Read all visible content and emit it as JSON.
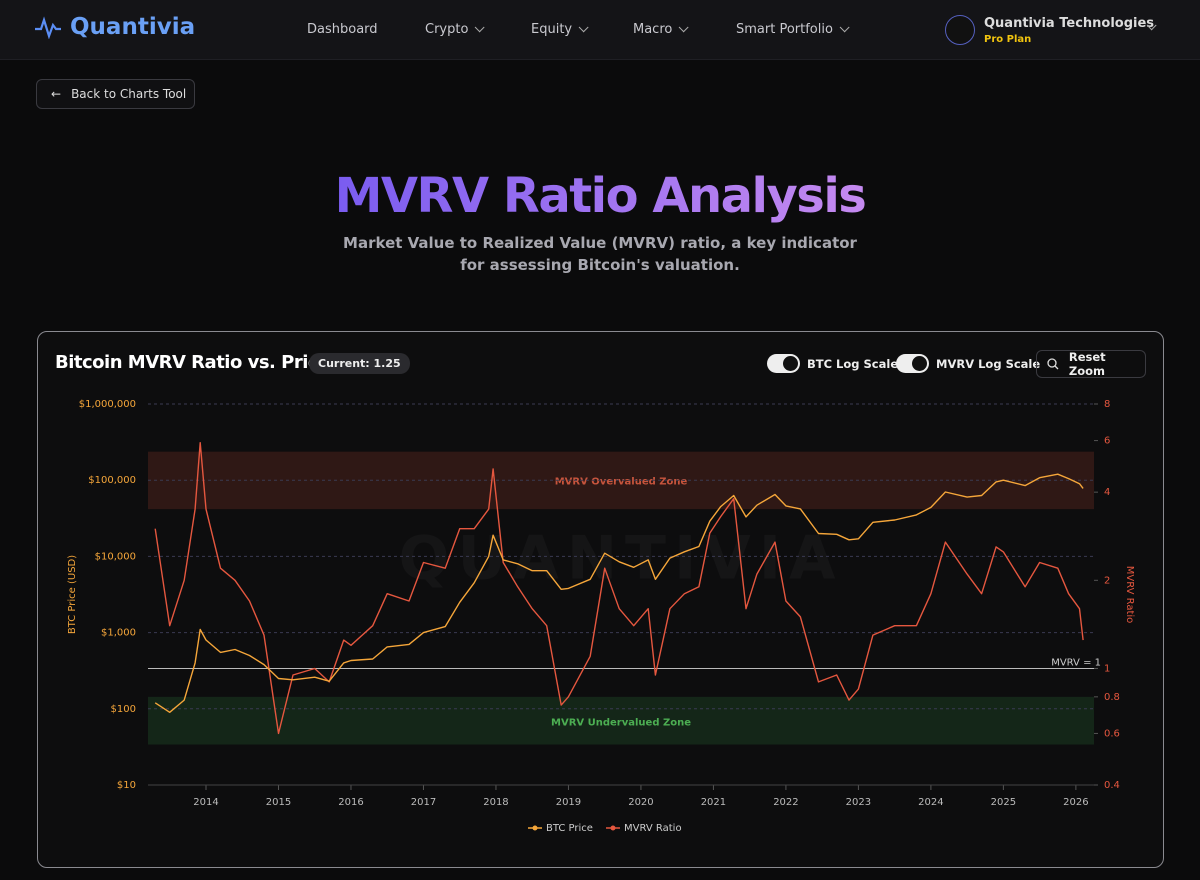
{
  "nav": {
    "brand": "Quantivia",
    "items": [
      "Dashboard",
      "Crypto",
      "Equity",
      "Macro",
      "Smart Portfolio"
    ],
    "user": "Quantivia Technologies",
    "plan": "Pro Plan"
  },
  "back_button": "Back to Charts Tool",
  "header": {
    "title": "MVRV Ratio Analysis",
    "subtitle": "Market Value to Realized Value (MVRV) ratio, a key indicator for assessing Bitcoin's valuation."
  },
  "controls": {
    "current": "Current: 1.25",
    "toggles": [
      "BTC Log Scale",
      "MVRV Log Scale"
    ],
    "reset": "Reset Zoom"
  },
  "chart_data": {
    "type": "line",
    "title": "Bitcoin MVRV Ratio vs. Price",
    "watermark": "QUANTIVIA",
    "x": [
      2013.3,
      2013.5,
      2013.7,
      2013.85,
      2013.92,
      2014.0,
      2014.2,
      2014.4,
      2014.6,
      2014.8,
      2015.0,
      2015.2,
      2015.5,
      2015.7,
      2015.9,
      2016.0,
      2016.3,
      2016.5,
      2016.8,
      2017.0,
      2017.3,
      2017.5,
      2017.7,
      2017.9,
      2017.96,
      2018.1,
      2018.3,
      2018.5,
      2018.7,
      2018.9,
      2019.0,
      2019.3,
      2019.5,
      2019.7,
      2019.9,
      2020.1,
      2020.2,
      2020.4,
      2020.6,
      2020.8,
      2020.95,
      2021.1,
      2021.28,
      2021.45,
      2021.6,
      2021.85,
      2022.0,
      2022.2,
      2022.45,
      2022.7,
      2022.87,
      2023.0,
      2023.2,
      2023.5,
      2023.8,
      2024.0,
      2024.2,
      2024.5,
      2024.7,
      2024.9,
      2025.0,
      2025.3,
      2025.5,
      2025.75,
      2025.9,
      2026.05,
      2026.1
    ],
    "series": [
      {
        "name": "BTC Price",
        "color": "#f5a63a",
        "axis": "y",
        "values": [
          120,
          90,
          130,
          400,
          1100,
          800,
          550,
          600,
          500,
          380,
          250,
          240,
          260,
          230,
          400,
          430,
          450,
          650,
          700,
          1000,
          1200,
          2500,
          4500,
          10000,
          19000,
          9000,
          8000,
          6500,
          6500,
          3700,
          3800,
          5000,
          11000,
          8500,
          7200,
          9000,
          5000,
          9500,
          11500,
          13500,
          29000,
          45000,
          63000,
          33000,
          47000,
          65000,
          46000,
          42000,
          20000,
          19500,
          16500,
          17000,
          28000,
          30000,
          35000,
          44000,
          70000,
          60000,
          63000,
          95000,
          100000,
          85000,
          108000,
          120000,
          105000,
          90000,
          78000
        ]
      },
      {
        "name": "MVRV Ratio",
        "color": "#e5573f",
        "axis": "y2",
        "values": [
          3.0,
          1.4,
          2.0,
          3.5,
          5.9,
          3.5,
          2.2,
          2.0,
          1.7,
          1.3,
          0.6,
          0.95,
          1.0,
          0.9,
          1.25,
          1.2,
          1.4,
          1.8,
          1.7,
          2.3,
          2.2,
          3.0,
          3.0,
          3.5,
          4.8,
          2.3,
          1.9,
          1.6,
          1.4,
          0.75,
          0.8,
          1.1,
          2.2,
          1.6,
          1.4,
          1.6,
          0.95,
          1.6,
          1.8,
          1.9,
          2.9,
          3.3,
          3.8,
          1.6,
          2.1,
          2.7,
          1.7,
          1.5,
          0.9,
          0.95,
          0.78,
          0.85,
          1.3,
          1.4,
          1.4,
          1.8,
          2.7,
          2.1,
          1.8,
          2.6,
          2.5,
          1.9,
          2.3,
          2.2,
          1.8,
          1.6,
          1.25
        ]
      }
    ],
    "xlim": [
      2013.2,
      2026.25
    ],
    "xticks": [
      2014,
      2015,
      2016,
      2017,
      2018,
      2019,
      2020,
      2021,
      2022,
      2023,
      2024,
      2025,
      2026
    ],
    "ylim": [
      10,
      1000000
    ],
    "yticks": [
      {
        "value": 10,
        "label": "$10"
      },
      {
        "value": 100,
        "label": "$100"
      },
      {
        "value": 1000,
        "label": "$1,000"
      },
      {
        "value": 10000,
        "label": "$10,000"
      },
      {
        "value": 100000,
        "label": "$100,000"
      },
      {
        "value": 1000000,
        "label": "$1,000,000"
      }
    ],
    "y2lim": [
      0.4,
      8
    ],
    "y2ticks": [
      0.4,
      0.6,
      0.8,
      1,
      2,
      4,
      6,
      8
    ],
    "ylabel": "BTC Price (USD)",
    "y2label": "MVRV Ratio",
    "ylog": true,
    "y2log": true,
    "grid": true,
    "legend": "bottom",
    "zones": [
      {
        "label": "MVRV Overvalued Zone",
        "from": 3.5,
        "to": 5.5,
        "color": "#e5573f",
        "text_color": "#c8553d"
      },
      {
        "label": "MVRV Undervalued Zone",
        "from": 0.55,
        "to": 0.8,
        "color": "#3fae4f",
        "text_color": "#4cae52"
      }
    ],
    "reference_line": {
      "value": 1,
      "label": "MVRV = 1"
    }
  }
}
